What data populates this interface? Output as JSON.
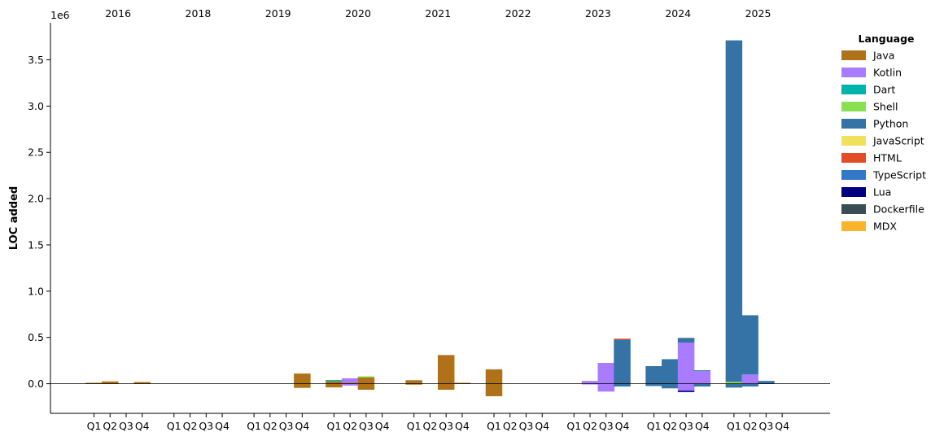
{
  "chart_data": {
    "type": "bar",
    "stacked": true,
    "ylabel": "LOC added",
    "y_multiplier_label": "1e6",
    "ylim": [
      -320000,
      3900000
    ],
    "yticks": [
      0,
      500000,
      1000000,
      1500000,
      2000000,
      2500000,
      3000000,
      3500000
    ],
    "ytick_labels": [
      "0.0",
      "0.5",
      "1.0",
      "1.5",
      "2.0",
      "2.5",
      "3.0",
      "3.5"
    ],
    "quarter_labels": [
      "Q1",
      "Q2",
      "Q3",
      "Q4"
    ],
    "years": [
      "2016",
      "2018",
      "2019",
      "2020",
      "2021",
      "2022",
      "2023",
      "2024",
      "2025"
    ],
    "legend": {
      "title": "Language",
      "position": "right"
    },
    "series": [
      {
        "name": "Java",
        "color": "#b07218"
      },
      {
        "name": "Kotlin",
        "color": "#a97bff"
      },
      {
        "name": "Dart",
        "color": "#00b4ab"
      },
      {
        "name": "Shell",
        "color": "#89e051"
      },
      {
        "name": "Python",
        "color": "#3572a5"
      },
      {
        "name": "JavaScript",
        "color": "#f1e05a"
      },
      {
        "name": "HTML",
        "color": "#e34c26"
      },
      {
        "name": "TypeScript",
        "color": "#3178c6"
      },
      {
        "name": "Lua",
        "color": "#000080"
      },
      {
        "name": "Dockerfile",
        "color": "#384d54"
      },
      {
        "name": "MDX",
        "color": "#fcb32c"
      }
    ],
    "bars": [
      {
        "year": "2016",
        "quarter": "Q1",
        "segments": [
          {
            "series": "Java",
            "value": 10000
          }
        ]
      },
      {
        "year": "2016",
        "quarter": "Q2",
        "segments": [
          {
            "series": "Java",
            "value": 25000
          }
        ]
      },
      {
        "year": "2016",
        "quarter": "Q4",
        "segments": [
          {
            "series": "Java",
            "value": 18000
          }
        ]
      },
      {
        "year": "2019",
        "quarter": "Q4",
        "segments": [
          {
            "series": "Java",
            "value": 110000
          },
          {
            "series": "Java",
            "value": -45000
          }
        ]
      },
      {
        "year": "2020",
        "quarter": "Q1",
        "segments": [
          {
            "series": "Java",
            "value": 28000
          },
          {
            "series": "Dart",
            "value": 12000
          },
          {
            "series": "Java",
            "value": -40000
          }
        ]
      },
      {
        "year": "2020",
        "quarter": "Q2",
        "segments": [
          {
            "series": "Java",
            "value": 10000
          },
          {
            "series": "Kotlin",
            "value": 48000
          },
          {
            "series": "Kotlin",
            "value": -20000
          }
        ]
      },
      {
        "year": "2020",
        "quarter": "Q3",
        "segments": [
          {
            "series": "Java",
            "value": 68000
          },
          {
            "series": "Shell",
            "value": 12000
          },
          {
            "series": "Java",
            "value": -65000
          }
        ]
      },
      {
        "year": "2021",
        "quarter": "Q1",
        "segments": [
          {
            "series": "Java",
            "value": 38000
          },
          {
            "series": "Java",
            "value": -10000
          }
        ]
      },
      {
        "year": "2021",
        "quarter": "Q3",
        "segments": [
          {
            "series": "Java",
            "value": 310000
          },
          {
            "series": "Java",
            "value": -65000
          }
        ]
      },
      {
        "year": "2021",
        "quarter": "Q4",
        "segments": [
          {
            "series": "Java",
            "value": 10000
          }
        ]
      },
      {
        "year": "2022",
        "quarter": "Q1",
        "segments": [
          {
            "series": "Java",
            "value": 155000
          },
          {
            "series": "Java",
            "value": -135000
          }
        ]
      },
      {
        "year": "2023",
        "quarter": "Q2",
        "segments": [
          {
            "series": "Kotlin",
            "value": 30000
          },
          {
            "series": "Kotlin",
            "value": -8000
          }
        ]
      },
      {
        "year": "2023",
        "quarter": "Q3",
        "segments": [
          {
            "series": "Kotlin",
            "value": 225000
          },
          {
            "series": "Kotlin",
            "value": -85000
          }
        ]
      },
      {
        "year": "2023",
        "quarter": "Q4",
        "segments": [
          {
            "series": "Python",
            "value": 475000
          },
          {
            "series": "HTML",
            "value": 12000
          },
          {
            "series": "Python",
            "value": -30000
          }
        ]
      },
      {
        "year": "2024",
        "quarter": "Q1",
        "segments": [
          {
            "series": "Python",
            "value": 190000
          },
          {
            "series": "Python",
            "value": -25000
          }
        ]
      },
      {
        "year": "2024",
        "quarter": "Q2",
        "segments": [
          {
            "series": "Python",
            "value": 265000
          },
          {
            "series": "Python",
            "value": -50000
          }
        ]
      },
      {
        "year": "2024",
        "quarter": "Q3",
        "segments": [
          {
            "series": "Kotlin",
            "value": 445000
          },
          {
            "series": "Python",
            "value": 50000
          },
          {
            "series": "Kotlin",
            "value": -75000
          },
          {
            "series": "Lua",
            "value": -15000
          }
        ]
      },
      {
        "year": "2024",
        "quarter": "Q4",
        "segments": [
          {
            "series": "Kotlin",
            "value": 135000
          },
          {
            "series": "Python",
            "value": 10000
          },
          {
            "series": "Python",
            "value": -30000
          }
        ]
      },
      {
        "year": "2025",
        "quarter": "Q1",
        "segments": [
          {
            "series": "Shell",
            "value": 20000
          },
          {
            "series": "Python",
            "value": 3690000
          },
          {
            "series": "Python",
            "value": -42000
          }
        ]
      },
      {
        "year": "2025",
        "quarter": "Q2",
        "segments": [
          {
            "series": "Kotlin",
            "value": 100000
          },
          {
            "series": "Python",
            "value": 640000
          },
          {
            "series": "Python",
            "value": -30000
          }
        ]
      },
      {
        "year": "2025",
        "quarter": "Q3",
        "segments": [
          {
            "series": "Python",
            "value": 30000
          }
        ]
      }
    ]
  }
}
